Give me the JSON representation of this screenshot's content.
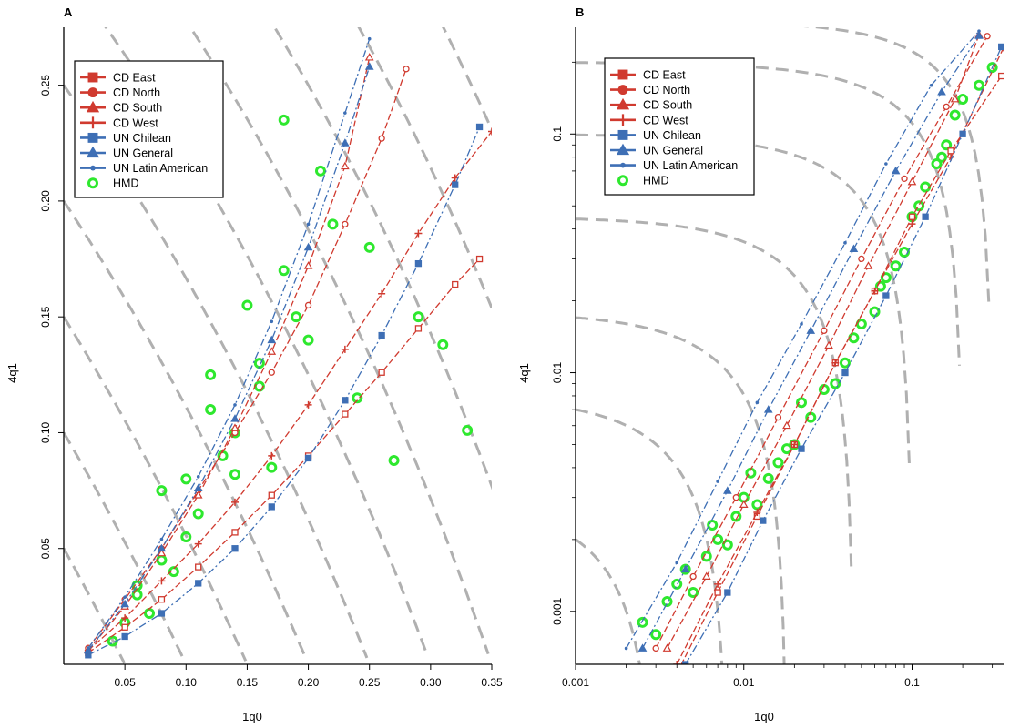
{
  "chart_data": [
    {
      "panel": "A",
      "type": "scatter",
      "xlabel": "1q0",
      "ylabel": "4q1",
      "xlim": [
        0,
        0.35
      ],
      "ylim": [
        0,
        0.275
      ],
      "x_scale": "linear",
      "y_scale": "linear",
      "xticks": [
        {
          "v": 0.05,
          "label": "0.05"
        },
        {
          "v": 0.1,
          "label": "0.10"
        },
        {
          "v": 0.15,
          "label": "0.15"
        },
        {
          "v": 0.2,
          "label": "0.20"
        },
        {
          "v": 0.25,
          "label": "0.25"
        },
        {
          "v": 0.3,
          "label": "0.30"
        },
        {
          "v": 0.35,
          "label": "0.35"
        }
      ],
      "yticks": [
        {
          "v": 0.05,
          "label": "0.05"
        },
        {
          "v": 0.1,
          "label": "0.10"
        },
        {
          "v": 0.15,
          "label": "0.15"
        },
        {
          "v": 0.2,
          "label": "0.20"
        },
        {
          "v": 0.25,
          "label": "0.25"
        }
      ],
      "legend_position": "top-left",
      "contours": "gray dashed iso-lines of 5q0",
      "series": [
        {
          "name": "CD East",
          "color": "#d03a2f",
          "marker": "square",
          "x": [
            0.02,
            0.05,
            0.08,
            0.11,
            0.14,
            0.17,
            0.2,
            0.23,
            0.26,
            0.29,
            0.32,
            0.34
          ],
          "y": [
            0.005,
            0.016,
            0.028,
            0.042,
            0.057,
            0.073,
            0.09,
            0.108,
            0.126,
            0.145,
            0.164,
            0.175
          ]
        },
        {
          "name": "CD North",
          "color": "#d03a2f",
          "marker": "circle",
          "x": [
            0.02,
            0.05,
            0.08,
            0.11,
            0.14,
            0.17,
            0.2,
            0.23,
            0.26,
            0.28
          ],
          "y": [
            0.007,
            0.028,
            0.05,
            0.075,
            0.1,
            0.126,
            0.155,
            0.19,
            0.227,
            0.257
          ]
        },
        {
          "name": "CD South",
          "color": "#d03a2f",
          "marker": "triangle",
          "x": [
            0.02,
            0.05,
            0.08,
            0.11,
            0.14,
            0.17,
            0.2,
            0.23,
            0.25
          ],
          "y": [
            0.006,
            0.025,
            0.048,
            0.073,
            0.102,
            0.135,
            0.172,
            0.215,
            0.262
          ]
        },
        {
          "name": "CD West",
          "color": "#d03a2f",
          "marker": "plus",
          "x": [
            0.02,
            0.05,
            0.08,
            0.11,
            0.14,
            0.17,
            0.2,
            0.23,
            0.26,
            0.29,
            0.32,
            0.35
          ],
          "y": [
            0.006,
            0.02,
            0.036,
            0.052,
            0.07,
            0.09,
            0.112,
            0.136,
            0.16,
            0.186,
            0.21,
            0.23
          ]
        },
        {
          "name": "UN Chilean",
          "color": "#3e6fb5",
          "marker": "square",
          "x": [
            0.02,
            0.05,
            0.08,
            0.11,
            0.14,
            0.17,
            0.2,
            0.23,
            0.26,
            0.29,
            0.32,
            0.34
          ],
          "y": [
            0.004,
            0.012,
            0.022,
            0.035,
            0.05,
            0.068,
            0.089,
            0.114,
            0.142,
            0.173,
            0.207,
            0.232
          ]
        },
        {
          "name": "UN General",
          "color": "#3e6fb5",
          "marker": "triangle",
          "x": [
            0.02,
            0.05,
            0.08,
            0.11,
            0.14,
            0.17,
            0.2,
            0.23,
            0.25
          ],
          "y": [
            0.006,
            0.026,
            0.05,
            0.076,
            0.106,
            0.14,
            0.18,
            0.225,
            0.258
          ]
        },
        {
          "name": "UN Latin American",
          "color": "#3e6fb5",
          "marker": "dot",
          "x": [
            0.02,
            0.05,
            0.08,
            0.11,
            0.14,
            0.17,
            0.2,
            0.23,
            0.25
          ],
          "y": [
            0.007,
            0.029,
            0.054,
            0.081,
            0.112,
            0.148,
            0.19,
            0.238,
            0.27
          ]
        },
        {
          "name": "HMD",
          "color": "#2ee82e",
          "marker": "ring",
          "x": [
            0.04,
            0.05,
            0.06,
            0.07,
            0.08,
            0.09,
            0.1,
            0.11,
            0.12,
            0.13,
            0.14,
            0.15,
            0.16,
            0.17,
            0.18,
            0.19,
            0.2,
            0.22,
            0.24,
            0.25,
            0.27,
            0.29,
            0.31,
            0.33,
            0.21,
            0.18,
            0.16,
            0.14,
            0.12,
            0.1,
            0.08,
            0.06
          ],
          "y": [
            0.01,
            0.018,
            0.03,
            0.022,
            0.045,
            0.04,
            0.08,
            0.065,
            0.11,
            0.09,
            0.1,
            0.155,
            0.12,
            0.085,
            0.17,
            0.15,
            0.14,
            0.19,
            0.115,
            0.18,
            0.088,
            0.15,
            0.138,
            0.101,
            0.213,
            0.235,
            0.13,
            0.082,
            0.125,
            0.055,
            0.075,
            0.034
          ]
        }
      ]
    },
    {
      "panel": "B",
      "type": "scatter",
      "xlabel": "1q0",
      "ylabel": "4q1",
      "xlim": [
        0.001,
        0.35
      ],
      "ylim": [
        0.0006,
        0.28
      ],
      "x_scale": "log",
      "y_scale": "log",
      "xticks": [
        {
          "v": 0.001,
          "label": "0.001"
        },
        {
          "v": 0.01,
          "label": "0.01"
        },
        {
          "v": 0.1,
          "label": "0.1"
        }
      ],
      "yticks": [
        {
          "v": 0.001,
          "label": "0.001"
        },
        {
          "v": 0.01,
          "label": "0.01"
        },
        {
          "v": 0.1,
          "label": "0.1"
        }
      ],
      "legend_position": "top-left",
      "contours": "gray dashed iso-lines of 5q0",
      "series": [
        {
          "name": "CD East",
          "color": "#d03a2f",
          "marker": "square",
          "x": [
            0.004,
            0.007,
            0.012,
            0.02,
            0.035,
            0.06,
            0.1,
            0.17,
            0.34
          ],
          "y": [
            0.00055,
            0.0012,
            0.0025,
            0.005,
            0.011,
            0.022,
            0.045,
            0.085,
            0.175
          ]
        },
        {
          "name": "CD North",
          "color": "#d03a2f",
          "marker": "circle",
          "x": [
            0.003,
            0.005,
            0.009,
            0.016,
            0.03,
            0.05,
            0.09,
            0.16,
            0.28
          ],
          "y": [
            0.0007,
            0.0014,
            0.003,
            0.0065,
            0.015,
            0.03,
            0.065,
            0.13,
            0.257
          ]
        },
        {
          "name": "CD South",
          "color": "#d03a2f",
          "marker": "triangle",
          "x": [
            0.0035,
            0.006,
            0.01,
            0.018,
            0.032,
            0.055,
            0.1,
            0.18,
            0.25
          ],
          "y": [
            0.0007,
            0.0014,
            0.0028,
            0.006,
            0.013,
            0.028,
            0.063,
            0.14,
            0.26
          ]
        },
        {
          "name": "CD West",
          "color": "#d03a2f",
          "marker": "plus",
          "x": [
            0.004,
            0.007,
            0.012,
            0.02,
            0.035,
            0.06,
            0.1,
            0.17,
            0.35
          ],
          "y": [
            0.0006,
            0.0013,
            0.0026,
            0.005,
            0.011,
            0.022,
            0.042,
            0.08,
            0.23
          ]
        },
        {
          "name": "UN Chilean",
          "color": "#3e6fb5",
          "marker": "square",
          "x": [
            0.0045,
            0.008,
            0.013,
            0.022,
            0.04,
            0.07,
            0.12,
            0.2,
            0.34
          ],
          "y": [
            0.0006,
            0.0012,
            0.0024,
            0.0048,
            0.01,
            0.021,
            0.045,
            0.1,
            0.232
          ]
        },
        {
          "name": "UN General",
          "color": "#3e6fb5",
          "marker": "triangle",
          "x": [
            0.0025,
            0.0045,
            0.008,
            0.014,
            0.025,
            0.045,
            0.08,
            0.15,
            0.25
          ],
          "y": [
            0.0007,
            0.0015,
            0.0032,
            0.007,
            0.015,
            0.033,
            0.07,
            0.15,
            0.258
          ]
        },
        {
          "name": "UN Latin American",
          "color": "#3e6fb5",
          "marker": "dot",
          "x": [
            0.002,
            0.004,
            0.007,
            0.012,
            0.022,
            0.04,
            0.07,
            0.13,
            0.25
          ],
          "y": [
            0.0007,
            0.0016,
            0.0035,
            0.0075,
            0.016,
            0.035,
            0.075,
            0.16,
            0.27
          ]
        },
        {
          "name": "HMD",
          "color": "#2ee82e",
          "marker": "ring",
          "x": [
            0.0025,
            0.003,
            0.0035,
            0.004,
            0.005,
            0.006,
            0.007,
            0.008,
            0.009,
            0.01,
            0.012,
            0.014,
            0.016,
            0.018,
            0.02,
            0.025,
            0.03,
            0.035,
            0.04,
            0.05,
            0.06,
            0.07,
            0.08,
            0.09,
            0.1,
            0.12,
            0.14,
            0.16,
            0.18,
            0.2,
            0.25,
            0.3,
            0.0045,
            0.0065,
            0.011,
            0.022,
            0.045,
            0.065,
            0.11,
            0.15
          ],
          "y": [
            0.0009,
            0.0008,
            0.0011,
            0.0013,
            0.0012,
            0.0017,
            0.002,
            0.0019,
            0.0025,
            0.003,
            0.0028,
            0.0036,
            0.0042,
            0.0048,
            0.005,
            0.0065,
            0.0085,
            0.009,
            0.011,
            0.016,
            0.018,
            0.025,
            0.028,
            0.032,
            0.045,
            0.06,
            0.075,
            0.09,
            0.12,
            0.14,
            0.16,
            0.19,
            0.0015,
            0.0023,
            0.0038,
            0.0075,
            0.014,
            0.023,
            0.05,
            0.08
          ]
        }
      ]
    }
  ]
}
